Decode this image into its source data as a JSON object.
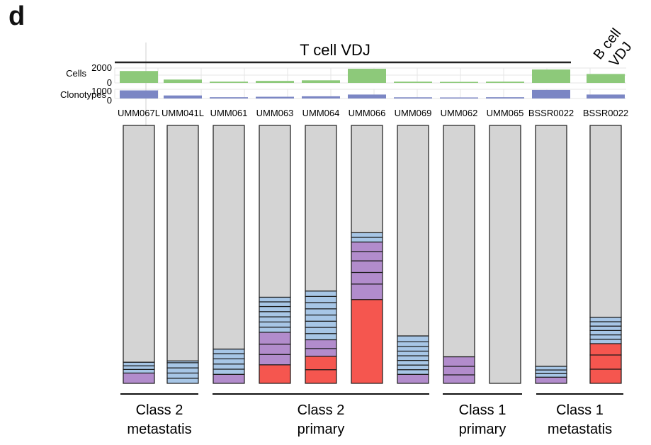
{
  "panel_letter": "d",
  "chart_data": {
    "type": "bar",
    "title": "",
    "top_labels": {
      "tcell": "T cell VDJ",
      "bcell_line1": "B cell",
      "bcell_line2": "VDJ"
    },
    "samples": [
      "UMM067L",
      "UMM041L",
      "UMM061",
      "UMM063",
      "UMM064",
      "UMM066",
      "UMM069",
      "UMM062",
      "UMM065",
      "BSSR0022",
      "BSSR0022"
    ],
    "cells": {
      "label": "Cells",
      "ticks": [
        "2000",
        "0"
      ],
      "ylim": [
        0,
        2000
      ],
      "color": "#8dc97a",
      "values": [
        1600,
        450,
        170,
        270,
        350,
        1900,
        170,
        120,
        170,
        1800,
        1200
      ]
    },
    "clonotypes": {
      "label": "Clonotypes",
      "ticks": [
        "1000",
        "0"
      ],
      "ylim": [
        0,
        1000
      ],
      "color": "#7b86c4",
      "values": [
        880,
        330,
        140,
        190,
        240,
        430,
        130,
        100,
        140,
        930,
        430
      ]
    },
    "stacks": {
      "unit": "fraction",
      "colors": {
        "rest": "#d4d4d4",
        "blue": "#a7c6e6",
        "purple": "#b28ccc",
        "red": "#f5564f"
      },
      "segments": [
        {
          "red": [],
          "purple": [
            0.04
          ],
          "blue": [
            0.014,
            0.014,
            0.014
          ],
          "rest": 0.918
        },
        {
          "red": [],
          "purple": [],
          "blue": [
            0.02,
            0.02,
            0.02,
            0.02,
            0.007
          ],
          "rest": 0.913
        },
        {
          "red": [],
          "purple": [
            0.035
          ],
          "blue": [
            0.02,
            0.02,
            0.02,
            0.02,
            0.018
          ],
          "rest": 0.867
        },
        {
          "red": [
            0.072
          ],
          "purple": [
            0.04,
            0.04,
            0.046
          ],
          "blue": [
            0.02,
            0.02,
            0.02,
            0.02,
            0.02,
            0.018,
            0.018
          ],
          "rest": 0.666
        },
        {
          "red": [
            0.053,
            0.052
          ],
          "purple": [
            0.03,
            0.034
          ],
          "blue": [
            0.024,
            0.024,
            0.024,
            0.024,
            0.024,
            0.024,
            0.024,
            0.021
          ],
          "rest": 0.545
        },
        {
          "red": [
            0.325
          ],
          "purple": [
            0.06,
            0.045,
            0.045,
            0.036,
            0.037
          ],
          "blue": [
            0.018,
            0.018
          ],
          "rest": 0.416
        },
        {
          "red": [],
          "purple": [
            0.035
          ],
          "blue": [
            0.018,
            0.018,
            0.018,
            0.018,
            0.018,
            0.018,
            0.018,
            0.023
          ],
          "rest": 0.816
        },
        {
          "red": [],
          "purple": [
            0.033,
            0.033,
            0.037
          ],
          "blue": [],
          "rest": 0.897
        },
        {
          "red": [],
          "purple": [],
          "blue": [],
          "rest": 1.0
        },
        {
          "red": [],
          "purple": [
            0.024
          ],
          "blue": [
            0.014,
            0.014,
            0.014
          ],
          "rest": 0.934
        },
        {
          "red": [
            0.055,
            0.055,
            0.044
          ],
          "purple": [],
          "blue": [
            0.017,
            0.017,
            0.017,
            0.017,
            0.017,
            0.017
          ],
          "rest": 0.744
        }
      ]
    },
    "groups": [
      {
        "line1": "Class 2",
        "line2": "metastatis",
        "from": 0,
        "to": 1
      },
      {
        "line1": "Class 2",
        "line2": "primary",
        "from": 2,
        "to": 6
      },
      {
        "line1": "Class 1",
        "line2": "primary",
        "from": 7,
        "to": 8
      },
      {
        "line1": "Class 1",
        "line2": "metastatis",
        "from": 9,
        "to": 10
      }
    ]
  }
}
